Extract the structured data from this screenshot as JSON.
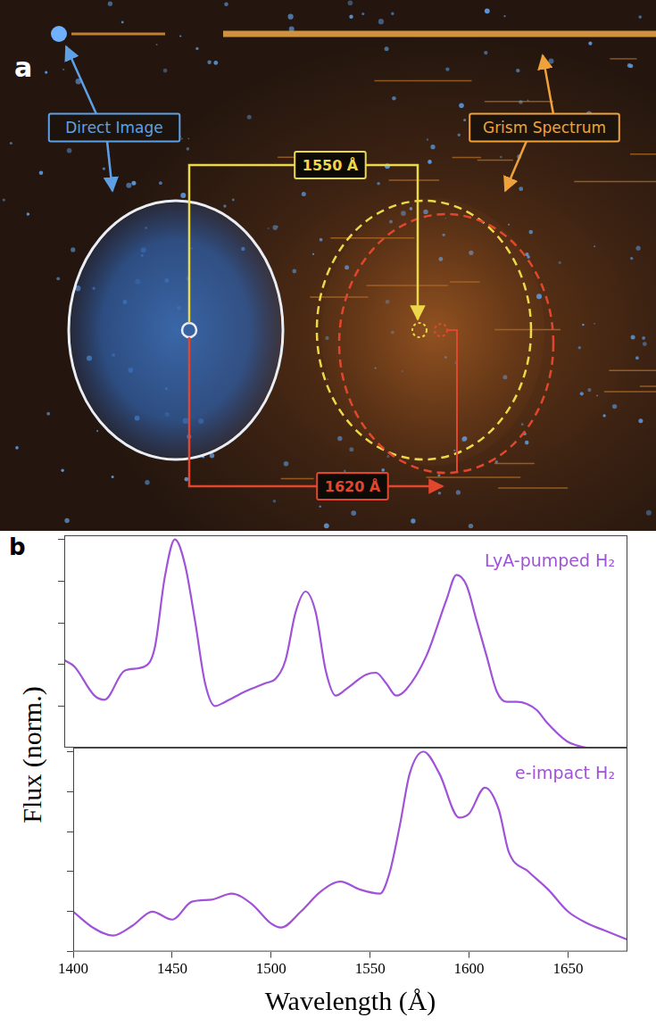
{
  "panel_a": {
    "letter": "a",
    "labels": {
      "direct_image": "Direct Image",
      "grism_spectrum": "Grism Spectrum",
      "line_1": "1550 Å",
      "line_2": "1620 Å"
    }
  },
  "panel_b": {
    "letter": "b",
    "x_label": "Wavelength (Å)",
    "y_label": "Flux (norm.)"
  },
  "chart_data": [
    {
      "type": "line",
      "x": [
        1400,
        1405,
        1415,
        1420,
        1430,
        1440,
        1445,
        1450,
        1455,
        1460,
        1465,
        1470,
        1475,
        1480,
        1490,
        1500,
        1505,
        1510,
        1515,
        1520,
        1525,
        1530,
        1535,
        1540,
        1550,
        1555,
        1560,
        1565,
        1570,
        1580,
        1590,
        1595,
        1600,
        1605,
        1610,
        1615,
        1620,
        1625,
        1630,
        1635,
        1640,
        1650,
        1655,
        1660,
        1670,
        1680
      ],
      "series": [
        {
          "name": "LyA-pumped H₂",
          "color": "#a052d8",
          "values": [
            0.42,
            0.39,
            0.25,
            0.23,
            0.37,
            0.39,
            0.48,
            0.82,
            1.0,
            0.88,
            0.61,
            0.31,
            0.2,
            0.22,
            0.27,
            0.31,
            0.33,
            0.42,
            0.65,
            0.75,
            0.65,
            0.37,
            0.25,
            0.28,
            0.35,
            0.36,
            0.31,
            0.25,
            0.28,
            0.44,
            0.71,
            0.83,
            0.78,
            0.61,
            0.44,
            0.27,
            0.22,
            0.22,
            0.21,
            0.18,
            0.12,
            0.03,
            0.01,
            0,
            0,
            0
          ]
        }
      ],
      "xlim": [
        1400,
        1680
      ],
      "xticks": [
        1400,
        1450,
        1500,
        1550,
        1600,
        1650
      ],
      "ylim": [
        0,
        1.02
      ],
      "yticks": [
        0,
        0.2,
        0.4,
        0.6,
        0.8,
        1.0
      ],
      "tick_labels": false,
      "grid": false
    },
    {
      "type": "line",
      "x": [
        1400,
        1410,
        1420,
        1430,
        1440,
        1450,
        1460,
        1470,
        1480,
        1490,
        1500,
        1505,
        1515,
        1525,
        1535,
        1545,
        1555,
        1560,
        1565,
        1570,
        1577,
        1585,
        1595,
        1600,
        1608,
        1615,
        1620,
        1630,
        1640,
        1650,
        1660,
        1670,
        1680
      ],
      "series": [
        {
          "name": "e-impact H₂",
          "color": "#a052d8",
          "values": [
            0.2,
            0.12,
            0.08,
            0.13,
            0.2,
            0.16,
            0.25,
            0.26,
            0.29,
            0.24,
            0.14,
            0.12,
            0.2,
            0.3,
            0.35,
            0.31,
            0.29,
            0.4,
            0.63,
            0.89,
            1.0,
            0.89,
            0.67,
            0.69,
            0.82,
            0.71,
            0.5,
            0.4,
            0.31,
            0.2,
            0.14,
            0.1,
            0.06
          ]
        }
      ],
      "xlim": [
        1400,
        1680
      ],
      "xticks": [
        1400,
        1450,
        1500,
        1550,
        1600,
        1650
      ],
      "ylim": [
        0,
        1.02
      ],
      "yticks": [
        0,
        0.2,
        0.4,
        0.6,
        0.8,
        1.0
      ],
      "tick_labels": "x",
      "grid": false
    }
  ]
}
